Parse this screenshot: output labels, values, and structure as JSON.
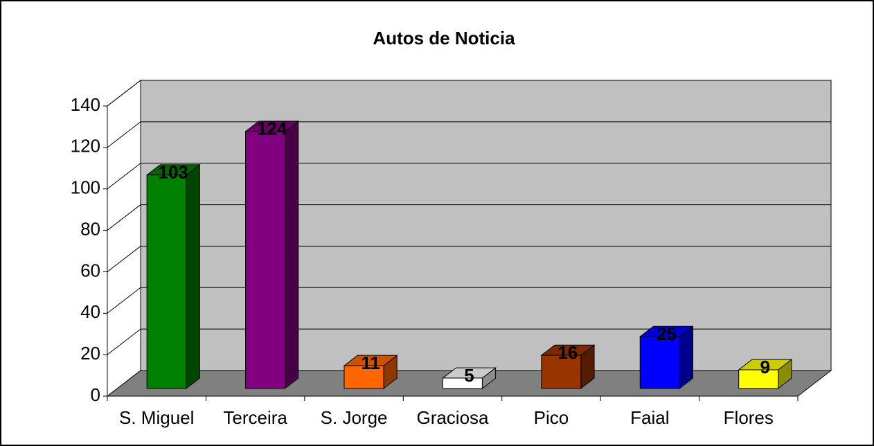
{
  "chart_data": {
    "type": "bar3d",
    "title": "Autos de Noticia",
    "categories": [
      "S. Miguel",
      "Terceira",
      "S. Jorge",
      "Graciosa",
      "Pico",
      "Faial",
      "Flores"
    ],
    "values": [
      103,
      124,
      11,
      5,
      16,
      25,
      9
    ],
    "colors": [
      "#008000",
      "#800080",
      "#ff6600",
      "#ffffff",
      "#993300",
      "#0000ff",
      "#ffff00"
    ],
    "ylim": [
      0,
      140
    ],
    "yticks": [
      0,
      20,
      40,
      60,
      80,
      100,
      120,
      140
    ],
    "grid": true
  }
}
